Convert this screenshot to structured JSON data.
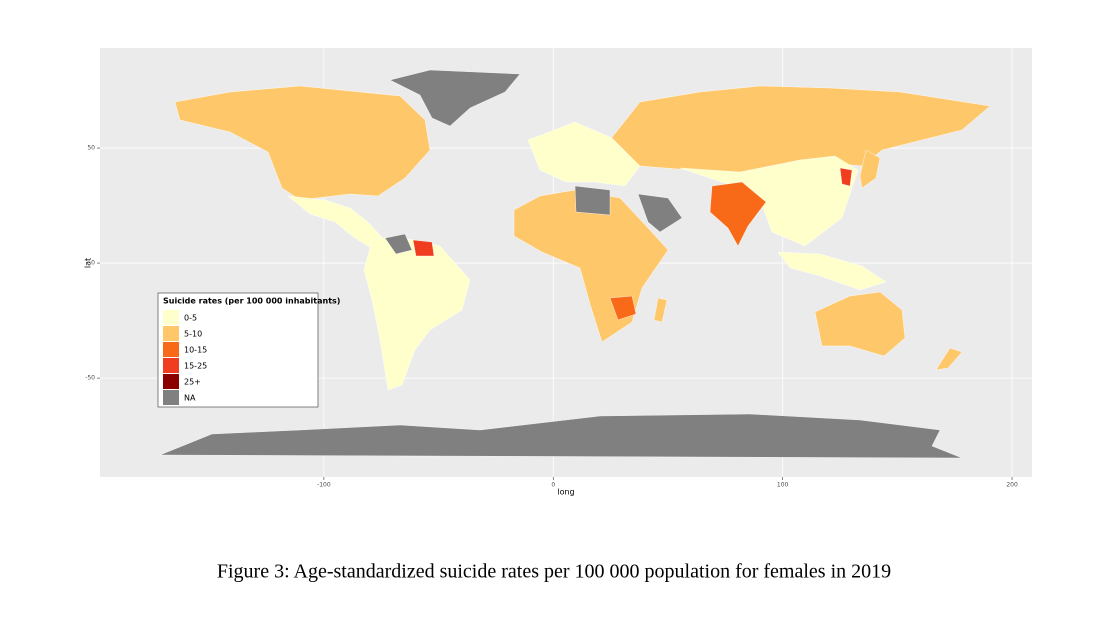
{
  "chart_data": {
    "type": "map",
    "xlabel": "long",
    "ylabel": "lat",
    "xlim": [
      -197.6,
      208.7
    ],
    "ylim": [
      -93,
      93.5
    ],
    "xticks": [
      -100,
      0,
      100,
      200
    ],
    "yticks": [
      -50,
      0,
      50
    ],
    "grid": true,
    "legend_title": "Suicide rates (per 100 000 inhabitants)",
    "categories": [
      "0-5",
      "5-10",
      "10-15",
      "15-25",
      "25+",
      "NA"
    ],
    "colors": [
      "#ffffcc",
      "#fec76a",
      "#f86a17",
      "#f03c1f",
      "#8b0000",
      "#808080"
    ],
    "caption": "Figure 3: Age-standardized suicide rates per 100 000 population for females in 2019"
  }
}
